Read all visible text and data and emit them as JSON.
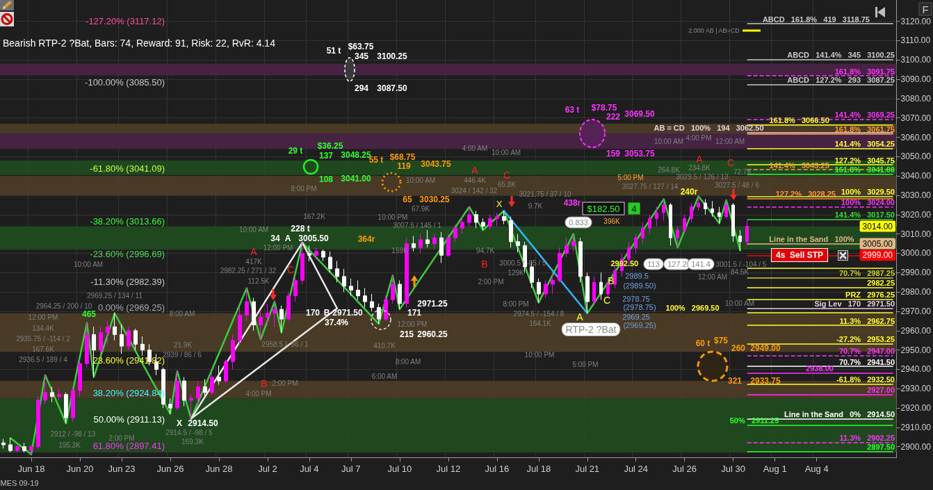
{
  "chart_data": {
    "type": "candlestick",
    "categories": [
      null,
      null,
      null,
      null,
      "Jun 18",
      null,
      null,
      null,
      null,
      null,
      null,
      "Jun 20",
      null,
      null,
      null,
      null,
      null,
      "Jun 23",
      null,
      null,
      null,
      null,
      null,
      null,
      "Jun 26",
      null,
      null,
      null,
      null,
      null,
      null,
      "Jun 28",
      null,
      null,
      null,
      null,
      null,
      null,
      "Jul 2",
      null,
      null,
      null,
      null,
      null,
      "Jul 4",
      null,
      null,
      null,
      null,
      null,
      "Jul 7",
      null,
      null,
      null,
      null,
      null,
      null,
      "Jul 10",
      null,
      null,
      null,
      null,
      null,
      null,
      "Jul 12",
      null,
      null,
      null,
      null,
      null,
      null,
      "Jul 16",
      null,
      null,
      null,
      null,
      null,
      "Jul 18",
      null,
      null,
      null,
      null,
      null,
      null,
      "Jul 21",
      null,
      null,
      null,
      null,
      null,
      null,
      "Jul 24",
      null,
      null,
      null,
      null,
      null,
      null,
      "Jul 26",
      null,
      null,
      null,
      null,
      null,
      null,
      "Jul 30",
      null,
      null,
      null,
      null,
      null,
      "Aug 1",
      null,
      null,
      null,
      null,
      null,
      "Aug 4",
      null,
      null,
      null,
      null,
      null,
      null,
      null,
      null,
      null,
      null,
      null
    ],
    "ohlc": [
      [
        2902,
        2904,
        2899,
        2901
      ],
      [
        2901,
        2904.5,
        2897,
        2898
      ],
      [
        2898,
        2901,
        2897,
        2900
      ],
      [
        2900,
        2902,
        2897,
        2898
      ],
      [
        2898,
        2901,
        2896,
        2900
      ],
      [
        2900,
        2926,
        2899,
        2924
      ],
      [
        2924,
        2937,
        2922,
        2928
      ],
      [
        2928,
        2931,
        2923,
        2926
      ],
      [
        2926,
        2930,
        2924,
        2927
      ],
      [
        2927,
        2928,
        2912,
        2915
      ],
      [
        2915,
        2931,
        2913,
        2929
      ],
      [
        2929,
        2945,
        2926,
        2943
      ],
      [
        2943,
        2964,
        2941,
        2958
      ],
      [
        2958,
        2962,
        2936,
        2950
      ],
      [
        2950,
        2962,
        2948,
        2959
      ],
      [
        2959,
        2965,
        2953,
        2962
      ],
      [
        2962,
        2969.25,
        2955,
        2958
      ],
      [
        2958,
        2963,
        2948,
        2952
      ],
      [
        2952,
        2962,
        2950,
        2960
      ],
      [
        2960,
        2961,
        2950,
        2953
      ],
      [
        2953,
        2957,
        2947,
        2950
      ],
      [
        2950,
        2953,
        2942,
        2944
      ],
      [
        2944,
        2948,
        2937,
        2940
      ],
      [
        2940,
        2941,
        2920,
        2922
      ],
      [
        2922,
        2925,
        2917,
        2920
      ],
      [
        2920,
        2939,
        2919,
        2934
      ],
      [
        2934,
        2936,
        2921,
        2924
      ],
      [
        2924,
        2927,
        2914.5,
        2925
      ],
      [
        2925,
        2934,
        2921,
        2931
      ],
      [
        2931,
        2935,
        2926,
        2928
      ],
      [
        2928,
        2938,
        2927,
        2936
      ],
      [
        2936,
        2942,
        2932,
        2934
      ],
      [
        2934,
        2945,
        2933,
        2944
      ],
      [
        2944,
        2958,
        2940,
        2955
      ],
      [
        2955,
        2972,
        2953,
        2968
      ],
      [
        2968,
        2982.25,
        2965,
        2975
      ],
      [
        2975,
        2977,
        2960,
        2963
      ],
      [
        2963,
        2970,
        2955.5,
        2967
      ],
      [
        2967,
        2974,
        2963,
        2969
      ],
      [
        2969,
        2975,
        2962,
        2971
      ],
      [
        2971,
        2973,
        2959,
        2966
      ],
      [
        2966,
        2980,
        2965,
        2978
      ],
      [
        2978,
        2988,
        2975,
        2986
      ],
      [
        2986,
        3005.5,
        2984,
        3000
      ],
      [
        3000,
        3004,
        2996,
        2999
      ],
      [
        2999,
        3003,
        2997,
        3001
      ],
      [
        3001,
        3002,
        2996,
        2998
      ],
      [
        2998,
        3001,
        2990,
        2992
      ],
      [
        2992,
        2996,
        2985,
        2988
      ],
      [
        2988,
        2992,
        2980,
        2983
      ],
      [
        2983,
        2987,
        2978,
        2981
      ],
      [
        2981,
        2986,
        2976,
        2978
      ],
      [
        2978,
        2982,
        2972,
        2975
      ],
      [
        2975,
        2979,
        2970,
        2972
      ],
      [
        2972,
        2974,
        2963.5,
        2966
      ],
      [
        2966,
        2978,
        2965,
        2976
      ],
      [
        2976,
        2988.5,
        2974,
        2984
      ],
      [
        2984,
        2986,
        2971.25,
        2974
      ],
      [
        2974,
        3008,
        2972,
        3005
      ],
      [
        3005,
        3009,
        3001,
        3003
      ],
      [
        3003,
        3010,
        3000,
        3007
      ],
      [
        3007,
        3012,
        3003,
        3005
      ],
      [
        3005,
        3010,
        3002,
        3008
      ],
      [
        3008,
        3011,
        2995,
        2999
      ],
      [
        2999,
        3010,
        2998,
        3008
      ],
      [
        3008,
        3015,
        3006,
        3013
      ],
      [
        3013,
        3019,
        3010,
        3016
      ],
      [
        3016,
        3024,
        3014,
        3020
      ],
      [
        3020,
        3022,
        3013,
        3016
      ],
      [
        3016,
        3018,
        3012,
        3014
      ],
      [
        3014,
        3020,
        3012.5,
        3018
      ],
      [
        3018,
        3021,
        3014,
        3019
      ],
      [
        3019,
        3021.75,
        3015,
        3017
      ],
      [
        3017,
        3019,
        3003,
        3006
      ],
      [
        3006,
        3010,
        3000.5,
        3004
      ],
      [
        3004,
        3006,
        2990,
        2993
      ],
      [
        2993,
        2996,
        2982,
        2985
      ],
      [
        2985,
        2987,
        2974.5,
        2979
      ],
      [
        2979,
        2986,
        2977,
        2984
      ],
      [
        2984,
        2990,
        2979,
        2986
      ],
      [
        2986,
        3003,
        2985,
        3000
      ],
      [
        3000,
        3008,
        2998,
        3004
      ],
      [
        3004,
        3010,
        3001,
        3006
      ],
      [
        3006,
        3008,
        2985,
        2988
      ],
      [
        2988,
        2990,
        2969.25,
        2975
      ],
      [
        2975,
        2988,
        2973,
        2985
      ],
      [
        2985,
        2990,
        2976,
        2979
      ],
      [
        2979,
        2987,
        2977,
        2984
      ],
      [
        2984,
        2994,
        2982,
        2991
      ],
      [
        2991,
        3000,
        2988,
        2997
      ],
      [
        2997,
        3006,
        2994,
        3003
      ],
      [
        3003,
        3010,
        3000,
        3008
      ],
      [
        3008,
        3016,
        3005,
        3013
      ],
      [
        3013,
        3020,
        3010,
        3018
      ],
      [
        3018,
        3024,
        3014,
        3021
      ],
      [
        3021,
        3027.75,
        3017,
        3025
      ],
      [
        3025,
        3026,
        3004,
        3008
      ],
      [
        3008,
        3014,
        3003,
        3012
      ],
      [
        3012,
        3020,
        3010,
        3018
      ],
      [
        3018,
        3026,
        3016,
        3024
      ],
      [
        3024,
        3029.5,
        3022,
        3026
      ],
      [
        3026,
        3028,
        3020,
        3023
      ],
      [
        3023,
        3027,
        3019,
        3021
      ],
      [
        3021,
        3024,
        3015.5,
        3019
      ],
      [
        3019,
        3027.5,
        3018,
        3025
      ],
      [
        3025,
        3026,
        3006,
        3009
      ],
      [
        3009,
        3012,
        3001.5,
        3006
      ],
      [
        3006,
        3017,
        3004,
        3014
      ],
      null,
      null,
      null,
      null,
      null,
      null,
      null,
      null,
      null,
      null,
      null,
      null,
      null,
      null,
      null,
      null,
      null,
      null,
      null,
      null,
      null
    ],
    "colors": [
      "#ffffff",
      "#ffffff",
      "#ff00ff",
      "#ffffff",
      "#ff00ff",
      "#ff00ff",
      "#ff00ff",
      "#ffffff",
      "#ff00ff",
      "#ffffff",
      "#ff00ff",
      "#ff00ff",
      "#ff00ff",
      "#ffffff",
      "#ff00ff",
      "#ff00ff",
      "#ffffff",
      "#ffffff",
      "#ff00ff",
      "#ffffff",
      "#ffffff",
      "#ffffff",
      "#ffffff",
      "#ffffff",
      "#ffffff",
      "#ff00ff",
      "#ffffff",
      "#ff00ff",
      "#ff00ff",
      "#ffffff",
      "#ff00ff",
      "#ffffff",
      "#ff00ff",
      "#ff00ff",
      "#ff00ff",
      "#ff00ff",
      "#ffffff",
      "#ff00ff",
      "#ff00ff",
      "#ff00ff",
      "#ffffff",
      "#ff00ff",
      "#ff00ff",
      "#ff00ff",
      "#ffffff",
      "#ff00ff",
      "#ffffff",
      "#ffffff",
      "#ffffff",
      "#ffffff",
      "#ffffff",
      "#ffffff",
      "#ffffff",
      "#ffffff",
      "#ffffff",
      "#ff00ff",
      "#ff00ff",
      "#ffffff",
      "#ff00ff",
      "#ffffff",
      "#ff00ff",
      "#ffffff",
      "#ff00ff",
      "#ffffff",
      "#ff00ff",
      "#ff00ff",
      "#ff00ff",
      "#ff00ff",
      "#ffffff",
      "#ffffff",
      "#ff00ff",
      "#ff00ff",
      "#ffffff",
      "#ffffff",
      "#ffffff",
      "#ffffff",
      "#ffffff",
      "#ffffff",
      "#ff00ff",
      "#ff00ff",
      "#ff00ff",
      "#ff00ff",
      "#ff00ff",
      "#ffffff",
      "#ffffff",
      "#ff00ff",
      "#ffffff",
      "#ff00ff",
      "#ff00ff",
      "#ff00ff",
      "#ff00ff",
      "#ff00ff",
      "#ff00ff",
      "#ff00ff",
      "#ff00ff",
      "#ff00ff",
      "#ffffff",
      "#ff00ff",
      "#ff00ff",
      "#ff00ff",
      "#ff00ff",
      "#ffffff",
      "#ffffff",
      "#ffffff",
      "#ff00ff",
      "#ffffff",
      "#ffffff",
      "#ff00ff",
      null,
      null,
      null,
      null,
      null,
      null,
      null,
      null,
      null,
      null,
      null,
      null,
      null,
      null,
      null,
      null,
      null,
      null,
      null,
      null,
      null
    ],
    "series": [
      {
        "type": "line",
        "color": "#3ccc3c",
        "values": [
          null,
          2904.5,
          null,
          null,
          2896,
          null,
          2937,
          null,
          null,
          2912,
          null,
          null,
          2964,
          2936,
          null,
          null,
          2969,
          null,
          null,
          null,
          null,
          null,
          null,
          null,
          2917,
          2939,
          null,
          2914.5,
          null,
          null,
          null,
          null,
          null,
          null,
          null,
          2982,
          null,
          2955.5,
          null,
          2975,
          2959,
          null,
          null,
          3005.5,
          null,
          null,
          null,
          null,
          null,
          null,
          null,
          null,
          null,
          null,
          2963.5,
          null,
          2988.5,
          2971,
          null,
          null,
          null,
          null,
          null,
          null,
          null,
          null,
          null,
          3024,
          null,
          3012,
          null,
          null,
          3022,
          null,
          null,
          null,
          null,
          2974.5,
          null,
          null,
          null,
          null,
          3010,
          null,
          2969,
          null,
          null,
          null,
          null,
          null,
          null,
          null,
          null,
          null,
          null,
          3028,
          null,
          3003,
          null,
          null,
          3029.5,
          null,
          null,
          3015.5,
          3027.5,
          null,
          3001.5,
          null,
          null,
          null,
          null,
          null,
          null,
          null,
          null,
          null,
          null,
          null,
          null,
          null,
          null,
          null,
          null,
          null,
          null,
          null,
          null,
          null,
          null
        ]
      },
      {
        "type": "line",
        "color": "#e8e8e8",
        "values": [
          null,
          null,
          null,
          null,
          null,
          null,
          null,
          null,
          null,
          null,
          null,
          null,
          null,
          null,
          null,
          null,
          null,
          null,
          null,
          null,
          null,
          null,
          null,
          null,
          null,
          null,
          null,
          2914.5,
          null,
          null,
          null,
          null,
          null,
          null,
          null,
          null,
          null,
          null,
          null,
          null,
          null,
          null,
          null,
          3005.5,
          null,
          null,
          null,
          null,
          2971.5,
          null,
          null,
          null,
          null,
          null,
          null,
          null,
          null,
          null,
          null,
          null,
          null,
          null,
          null,
          null,
          null,
          null,
          null,
          null,
          null,
          null,
          null,
          null,
          null,
          null,
          null,
          null,
          null,
          null,
          null,
          null,
          null,
          null,
          null,
          null,
          null,
          null,
          null,
          null,
          null,
          null,
          null,
          null,
          null,
          null,
          null,
          null,
          null,
          null,
          null,
          null,
          null,
          null,
          null,
          null,
          null,
          null,
          null,
          null,
          null,
          null,
          null,
          null,
          null,
          null,
          null,
          null,
          null,
          null,
          null,
          null,
          null,
          null,
          null,
          null,
          null,
          null,
          null,
          null,
          null
        ]
      },
      {
        "type": "line",
        "color": "#e8e8e8",
        "values": [
          null,
          null,
          null,
          null,
          null,
          null,
          null,
          null,
          null,
          null,
          null,
          null,
          null,
          null,
          null,
          null,
          null,
          null,
          null,
          null,
          null,
          null,
          null,
          null,
          null,
          null,
          null,
          2914.5,
          null,
          null,
          null,
          null,
          null,
          null,
          null,
          null,
          null,
          null,
          null,
          null,
          null,
          null,
          null,
          null,
          null,
          null,
          null,
          null,
          2971.5,
          null,
          null,
          null,
          null,
          null,
          null,
          null,
          null,
          null,
          null,
          null,
          null,
          null,
          null,
          null,
          null,
          null,
          null,
          null,
          null,
          null,
          null,
          null,
          null,
          null,
          null,
          null,
          null,
          null,
          null,
          null,
          null,
          null,
          null,
          null,
          null,
          null,
          null,
          null,
          null,
          null,
          null,
          null,
          null,
          null,
          null,
          null,
          null,
          null,
          null,
          null,
          null,
          null,
          null,
          null,
          null,
          null,
          null,
          null,
          null,
          null,
          null,
          null,
          null,
          null,
          null,
          null,
          null,
          null,
          null,
          null,
          null,
          null,
          null,
          null,
          null,
          null,
          null,
          null,
          null
        ]
      },
      {
        "type": "line",
        "color": "#33b5ff",
        "values": [
          null,
          null,
          null,
          null,
          null,
          null,
          null,
          null,
          null,
          null,
          null,
          null,
          null,
          null,
          null,
          null,
          null,
          null,
          null,
          null,
          null,
          null,
          null,
          null,
          null,
          null,
          null,
          null,
          null,
          null,
          null,
          null,
          null,
          null,
          null,
          null,
          null,
          null,
          null,
          null,
          null,
          null,
          null,
          null,
          null,
          null,
          null,
          null,
          null,
          null,
          null,
          null,
          null,
          null,
          null,
          null,
          null,
          null,
          null,
          null,
          null,
          null,
          null,
          null,
          null,
          null,
          null,
          null,
          null,
          null,
          null,
          null,
          3022,
          null,
          null,
          null,
          null,
          null,
          null,
          null,
          null,
          null,
          null,
          null,
          2969,
          null,
          null,
          null,
          null,
          null,
          null,
          null,
          null,
          null,
          null,
          null,
          null,
          null,
          null,
          null,
          null,
          null,
          null,
          null,
          null,
          null,
          null,
          null,
          null,
          null,
          null,
          null,
          null,
          null,
          null,
          null,
          null,
          null,
          null,
          null,
          null,
          null,
          null,
          null,
          null,
          null,
          null,
          null,
          null
        ]
      }
    ],
    "ylim": [
      2894.5,
      3131
    ],
    "yticks": [
      {
        "value": 2900,
        "label": "2900.00"
      },
      {
        "value": 2910,
        "label": "2910.00"
      },
      {
        "value": 2920,
        "label": "2920.00"
      },
      {
        "value": 2930,
        "label": "2930.00"
      },
      {
        "value": 2940,
        "label": "2940.00"
      },
      {
        "value": 2950,
        "label": "2950.00"
      },
      {
        "value": 2960,
        "label": "2960.00"
      },
      {
        "value": 2970,
        "label": "2970.00"
      },
      {
        "value": 2980,
        "label": "2980.00"
      },
      {
        "value": 2990,
        "label": "2990.00"
      },
      {
        "value": 3000,
        "label": "3000.00"
      },
      {
        "value": 3010,
        "label": "3010.00"
      },
      {
        "value": 3020,
        "label": "3020.00"
      },
      {
        "value": 3030,
        "label": "3030.00"
      },
      {
        "value": 3040,
        "label": "3040.00"
      },
      {
        "value": 3050,
        "label": "3050.00"
      },
      {
        "value": 3060,
        "label": "3060.00"
      },
      {
        "value": 3070,
        "label": "3070.00"
      },
      {
        "value": 3080,
        "label": "3080.00"
      },
      {
        "value": 3090,
        "label": "3090.00"
      },
      {
        "value": 3100,
        "label": "3100.00"
      },
      {
        "value": 3110,
        "label": "3110.00"
      },
      {
        "value": 3120,
        "label": "3120.00"
      }
    ],
    "grid": true,
    "bands": [
      {
        "axis": "y",
        "from": 3092,
        "to": 3098,
        "color": "#4a2347"
      },
      {
        "axis": "y",
        "from": 3062,
        "to": 3067,
        "color": "#4d3d26"
      },
      {
        "axis": "y",
        "from": 3054,
        "to": 3062,
        "color": "#4a2347"
      },
      {
        "axis": "y",
        "from": 3040.5,
        "to": 3048,
        "color": "#1f4d1f"
      },
      {
        "axis": "y",
        "from": 3030,
        "to": 3040,
        "color": "#4d3d26"
      },
      {
        "axis": "y",
        "from": 3002,
        "to": 3014,
        "color": "#1f4d1f"
      },
      {
        "axis": "y",
        "from": 2949,
        "to": 2969,
        "color": "#4d3d26"
      },
      {
        "axis": "y",
        "from": 2925,
        "to": 2934,
        "color": "#4d3d26"
      },
      {
        "axis": "y",
        "from": 2897,
        "to": 2925,
        "color": "#1f4d1f"
      }
    ],
    "ref_lines": [
      {
        "axis": "y",
        "value": 3118.75,
        "label": "ABCD   161.8%   419   3118.75",
        "color": "#c8c8c8"
      },
      {
        "axis": "y",
        "value": 3100.25,
        "label": "ABCD   141.4%   345   3100.25",
        "color": "#c8c8c8"
      },
      {
        "axis": "y",
        "value": 3091.75,
        "label": "161.8%   3091.75",
        "color": "#ff33ff",
        "line_style": "dashed"
      },
      {
        "axis": "y",
        "value": 3087.25,
        "label": "ABCD   127.2%   293   3087.25",
        "color": "#c8c8c8"
      },
      {
        "axis": "y",
        "value": 3069.25,
        "label": "141.4%   3069.25",
        "color": "#ff33ff",
        "line_style": "dashed"
      },
      {
        "axis": "y",
        "value": 3066.5,
        "label": "161.8%   3066.50",
        "color": "#ffff33"
      },
      {
        "axis": "y",
        "value": 3062.5,
        "label": "AB = CD   100%   194   3062.50",
        "color": "#e6cce0"
      },
      {
        "axis": "y",
        "value": 3061.75,
        "label": "161.8%   3061.75",
        "color": "#ff9933"
      },
      {
        "axis": "y",
        "value": 3054.25,
        "label": "141.4%   3054.25",
        "color": "#ffff33"
      },
      {
        "axis": "y",
        "value": 3045.75,
        "label": "127.2%   3045.75",
        "color": "#ffff33"
      },
      {
        "axis": "y",
        "value": 3043.25,
        "label": "141.4%   3043.25",
        "color": "#ff9933",
        "line_style": "dashed"
      },
      {
        "axis": "y",
        "value": 3041,
        "label": "161.8%   3041.00",
        "color": "#33ff33"
      },
      {
        "axis": "y",
        "value": 3029.5,
        "label": "100%   3029.50",
        "color": "#ffff33"
      },
      {
        "axis": "y",
        "value": 3028.25,
        "label": "127.2%   3028.25",
        "color": "#ff9933"
      },
      {
        "axis": "y",
        "value": 3024,
        "label": "100%   3024.00",
        "color": "#ff33ff",
        "line_style": "dashed"
      },
      {
        "axis": "y",
        "value": 3017.5,
        "label": "141.4%   3017.50",
        "color": "#33dd33"
      },
      {
        "axis": "y",
        "value": 3005,
        "label": "Line in the Sand   100%",
        "color": "#deb887"
      },
      {
        "axis": "y",
        "value": 2999,
        "color": "#ff0000"
      },
      {
        "axis": "y",
        "value": 2992.5,
        "label": "2992.50",
        "color": "#ffff33"
      },
      {
        "axis": "y",
        "value": 2987.25,
        "label": "70.7%   2987.25",
        "color": "#cccc33"
      },
      {
        "axis": "y",
        "value": 2982.25,
        "label": "2982.25",
        "color": "#ffff33"
      },
      {
        "axis": "y",
        "value": 2976.25,
        "label": "PRZ   2976.25",
        "color": "#ffff33"
      },
      {
        "axis": "y",
        "value": 2971.5,
        "label": "Sig Lev   170   2971.50",
        "color": "#e6cce0"
      },
      {
        "axis": "y",
        "value": 2969.5,
        "label": "100%   2969.50",
        "color": "#ffff33"
      },
      {
        "axis": "y",
        "value": 2962.75,
        "label": "11.3%   2962.75",
        "color": "#ffff33"
      },
      {
        "axis": "y",
        "value": 2953.25,
        "label": "-27.2%   2953.25",
        "color": "#ffff33"
      },
      {
        "axis": "y",
        "value": 2947,
        "label": "70.7%   2947.00",
        "color": "#ff33ff",
        "line_style": "dashed"
      },
      {
        "axis": "y",
        "value": 2941.5,
        "label": "70.7%   2941.50",
        "color": "#ffffff"
      },
      {
        "axis": "y",
        "value": 2938,
        "label": "2938.00",
        "color": "#ff33ff"
      },
      {
        "axis": "y",
        "value": 2932.5,
        "label": "-61.8%   2932.50",
        "color": "#ffff33"
      },
      {
        "axis": "y",
        "value": 2927,
        "label": "2927.00",
        "color": "#ff33ff"
      },
      {
        "axis": "y",
        "value": 2914.5,
        "label": "Line in the Sand   0%   2914.50",
        "color": "#ffffff"
      },
      {
        "axis": "y",
        "value": 2911.25,
        "label": "50%   2911.25",
        "color": "#33ff33"
      },
      {
        "axis": "y",
        "value": 2902.25,
        "label": "11.3%   2902.25",
        "color": "#ff33ff",
        "line_style": "dashed"
      },
      {
        "axis": "y",
        "value": 2897.5,
        "label": "2897.50",
        "color": "#33ff33"
      }
    ],
    "annotations": [
      "-127.20% (3117.12)",
      "-100.00% (3085.50)",
      "-61.80% (3041.09)",
      "-38.20% (3013.66)",
      "-23.60% (2996.69)",
      "-11.30% (2982.39)",
      "0.00% (2969.25)",
      "23.60% (2941.82)",
      "38.20% (2924.84)",
      "50.00% (2911.13)",
      "61.80% (2897.41)",
      "465",
      "51 t",
      "$63.75",
      "345",
      "3100.25",
      "294",
      "3087.50",
      "29 t",
      "$36.25",
      "137",
      "3048.25",
      "108",
      "3041.00",
      "8:00 PM",
      "55 t",
      "$68.75",
      "119",
      "3043.75",
      "65",
      "3030.25",
      "63 t",
      "$78.75",
      "222",
      "3069.50",
      "159",
      "3053.75",
      "60 t",
      "$75",
      "260",
      "2949.00",
      "321",
      "2933.75",
      "34",
      "A",
      "3005.50",
      "228 t",
      "170",
      "B",
      "2971.50",
      "37.4%",
      "171",
      "2971.25",
      "215",
      "2960.25",
      "X",
      "2914.50",
      "364r",
      "240r",
      "438r",
      "4s  Sell STP",
      "$182.50",
      "4",
      "RTP-2 ?Bat",
      "Bearish RTP-2 ?Bat, Bars: 74, Reward: 91, Risk: 22, RvR: 4.14",
      {
        "text": "3014.00",
        "y": 3014
      },
      {
        "text": "3005.00",
        "y": 3005
      },
      {
        "text": "2999.00",
        "y": 2999
      },
      "MES 09-19",
      "F",
      "A",
      "C",
      "B",
      "A",
      "C",
      "B",
      "A",
      "C",
      "A",
      "C",
      "B",
      "X",
      "10:00 AM",
      "12:00 PM",
      "167.2K",
      "417K",
      "2982.25 / 271 / 32",
      "112.5K",
      "2958.5 / -56 / 1",
      "2:00 PM",
      "4:00 PM",
      "21.9K",
      "2939 / 86 / 6",
      "8:00 AM",
      "10:00 AM",
      "2969.25 / 134 / 11",
      "2964.25 / 200 / 10",
      "12:00 PM",
      "167.6K",
      "2936.5 / 189 / 4",
      "2935.75 / -114 / 2",
      "134.4K",
      "2912 / -98 / 13",
      "195.3K",
      "2:00 PM",
      "2914.5 / -98 / 5",
      "169.3K",
      "4:00 AM",
      "10:00 AM",
      "446.4K",
      "65.8K",
      "3024 / 142 / 32",
      "3021.75 / 37 / 10",
      "9.7K",
      "10:00 AM",
      "67.9K",
      "10:00 PM",
      "3007.5 / 145 / 1",
      "159K",
      "94.7K",
      "3000.5 / -85 / 5",
      "129K",
      "2:00 PM",
      "8:00 PM",
      "2974.5 / -154 / 8",
      "164.1K",
      "10:00 PM",
      "5:00 PM",
      "410.7K",
      "6:00 AM",
      "8:00 AM",
      "12:00 PM",
      "10:00 AM",
      "4:00 PM",
      "12:00 AM",
      "5:00 PM",
      "264.8K",
      "234.8K",
      "72.7K",
      "3027.75 / 127 / 14",
      "3029.5 / 126 / 13",
      "3027.5 / 48 / 6",
      "396K",
      "0.833",
      "3001.5 / -104 / 5",
      "84.5K",
      "12:00 AM",
      "10:00 AM",
      "2.000 AB | AB=CD",
      "113",
      "127.2",
      "141.4",
      "2989.5",
      "(2989.50)",
      "2978.75",
      "(2978.75)",
      "2969.25",
      "(2969.25)"
    ]
  }
}
